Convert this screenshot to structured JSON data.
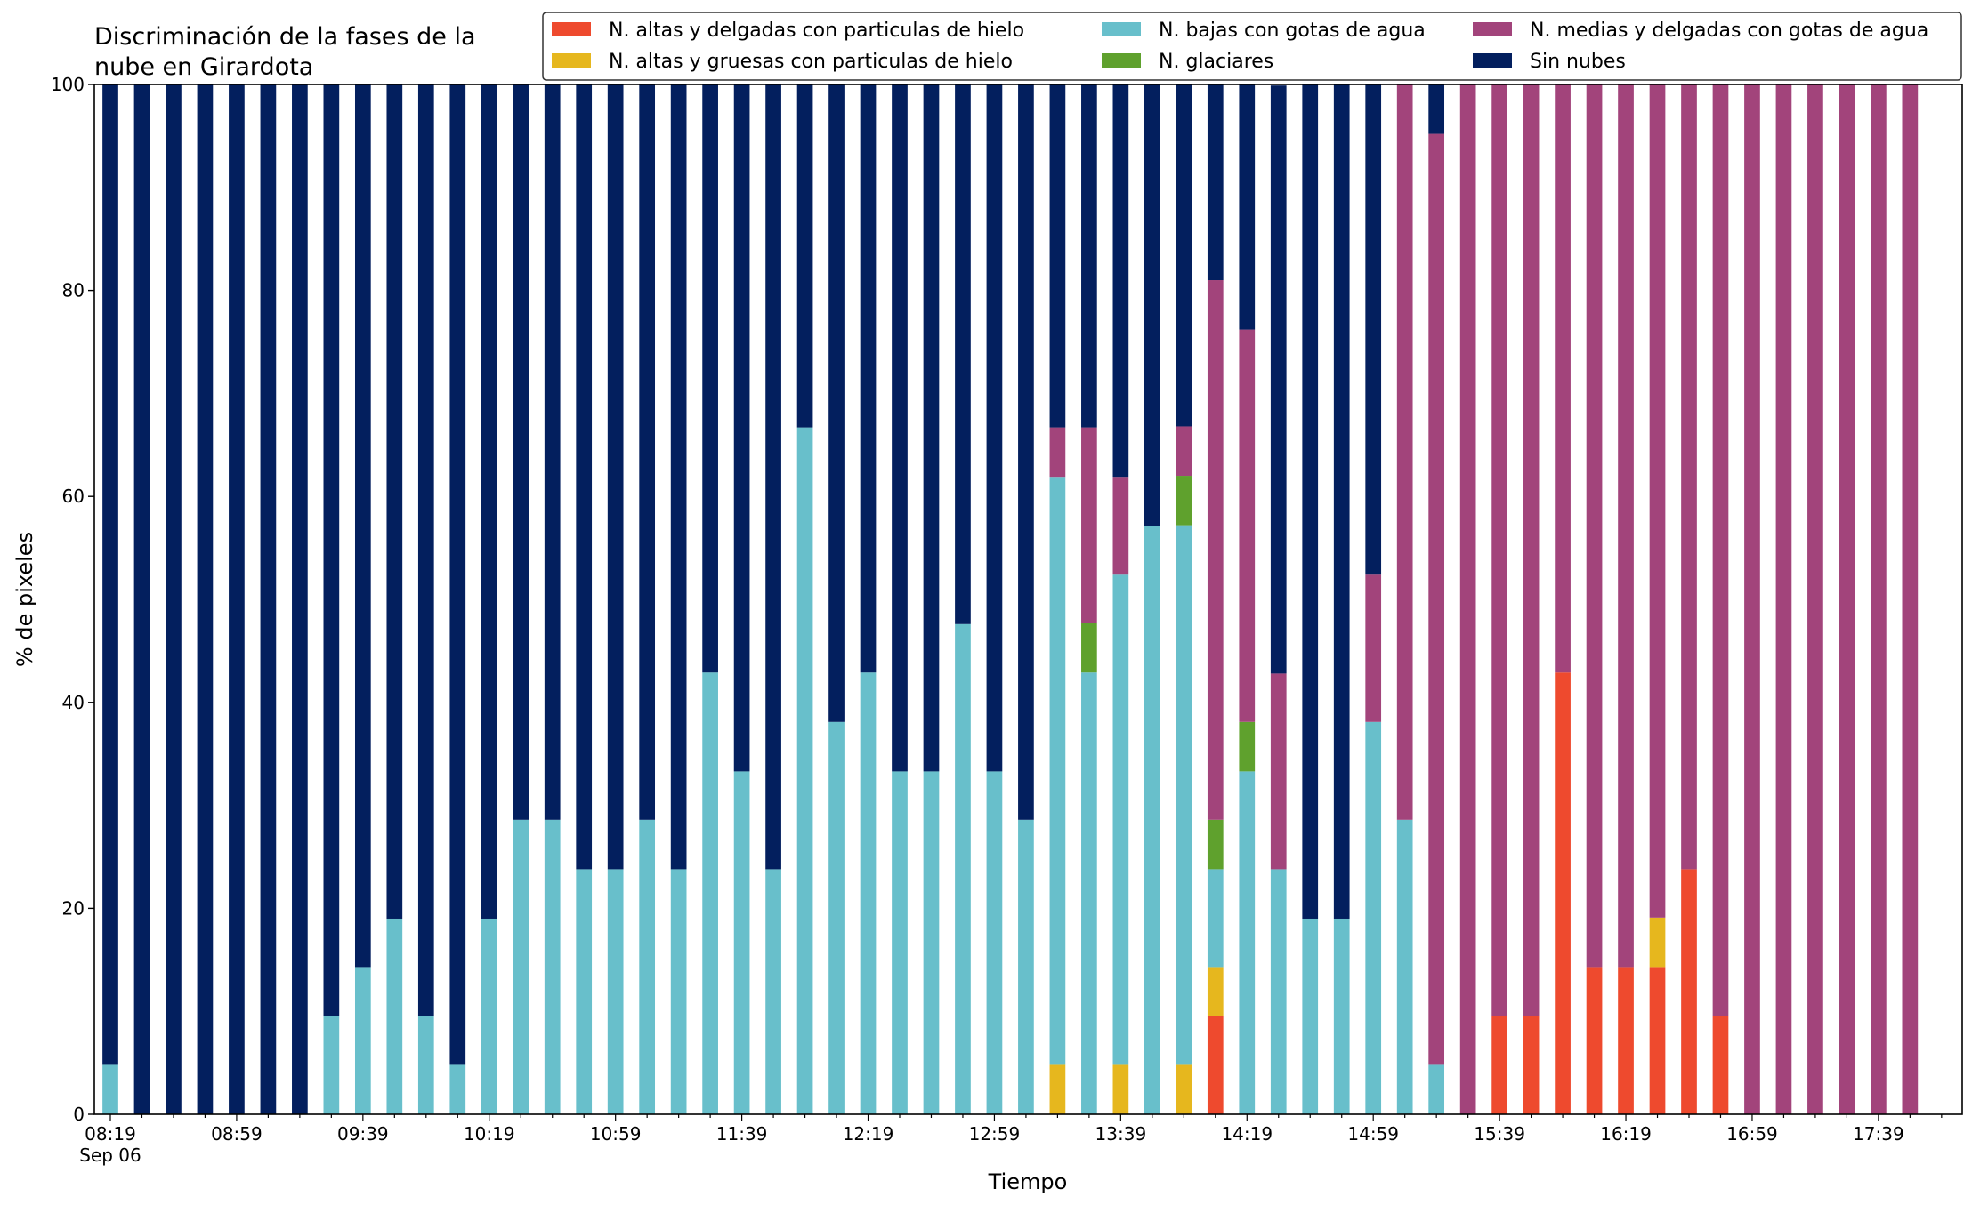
{
  "chart_data": {
    "type": "bar",
    "stacked": true,
    "title_line1": "Discriminación de la fases de la",
    "title_line2": "nube en Girardota",
    "xlabel": "Tiempo",
    "ylabel": "% de pixeles",
    "ylim": [
      0,
      100
    ],
    "yticks": [
      "0",
      "20",
      "40",
      "60",
      "80",
      "100"
    ],
    "xtick_labels": [
      "08:19",
      "08:59",
      "09:39",
      "10:19",
      "10:59",
      "11:39",
      "12:19",
      "12:59",
      "13:39",
      "14:19",
      "14:59",
      "15:39",
      "16:19",
      "16:59",
      "17:39"
    ],
    "xtick_sublabel": "Sep 06",
    "x": [
      "08:19",
      "08:29",
      "08:39",
      "08:49",
      "08:59",
      "09:09",
      "09:19",
      "09:29",
      "09:39",
      "09:49",
      "09:59",
      "10:09",
      "10:19",
      "10:29",
      "10:39",
      "10:49",
      "10:59",
      "11:09",
      "11:19",
      "11:29",
      "11:39",
      "11:49",
      "11:59",
      "12:09",
      "12:19",
      "12:29",
      "12:39",
      "12:49",
      "12:59",
      "13:09",
      "13:19",
      "13:29",
      "13:39",
      "13:49",
      "13:59",
      "14:09",
      "14:19",
      "14:29",
      "14:39",
      "14:49",
      "14:59",
      "15:09",
      "15:19",
      "15:29",
      "15:39",
      "15:49",
      "15:59",
      "16:09",
      "16:19",
      "16:29",
      "16:39",
      "16:49",
      "16:59",
      "17:09",
      "17:19",
      "17:29",
      "17:39",
      "17:49"
    ],
    "legend_position": "top-right",
    "grid": false,
    "series": [
      {
        "name": "N. altas y delgadas con particulas de hielo",
        "color": "#ee4a2e",
        "values": [
          0,
          0,
          0,
          0,
          0,
          0,
          0,
          0,
          0,
          0,
          0,
          0,
          0,
          0,
          0,
          0,
          0,
          0,
          0,
          0,
          0,
          0,
          0,
          0,
          0,
          0,
          0,
          0,
          0,
          0,
          0,
          0,
          0,
          0,
          0,
          9.5,
          0,
          0,
          0,
          0,
          0,
          0,
          0,
          0,
          9.5,
          9.5,
          42.9,
          14.3,
          14.3,
          14.3,
          23.8,
          9.5,
          0,
          0,
          0,
          0,
          0,
          0
        ]
      },
      {
        "name": "N. altas y gruesas con particulas de hielo",
        "color": "#e6b71e",
        "values": [
          0,
          0,
          0,
          0,
          0,
          0,
          0,
          0,
          0,
          0,
          0,
          0,
          0,
          0,
          0,
          0,
          0,
          0,
          0,
          0,
          0,
          0,
          0,
          0,
          0,
          0,
          0,
          0,
          0,
          0,
          4.8,
          0,
          4.8,
          0,
          4.8,
          4.8,
          0,
          0,
          0,
          0,
          0,
          0,
          0,
          0,
          0,
          0,
          0,
          0,
          0,
          4.8,
          0,
          0,
          0,
          0,
          0,
          0,
          0,
          0
        ]
      },
      {
        "name": "N. bajas con gotas de agua",
        "color": "#68bfcb",
        "values": [
          4.8,
          0,
          0,
          0,
          0,
          0,
          0,
          9.5,
          14.3,
          19.0,
          9.5,
          4.8,
          19.0,
          28.6,
          28.6,
          23.8,
          23.8,
          28.6,
          23.8,
          42.9,
          33.3,
          23.8,
          66.7,
          38.1,
          42.9,
          33.3,
          33.3,
          47.6,
          33.3,
          28.6,
          57.1,
          42.9,
          47.6,
          57.1,
          52.4,
          9.5,
          33.3,
          23.8,
          19.0,
          19.0,
          38.1,
          28.6,
          4.8,
          0,
          0,
          0,
          0,
          0,
          0,
          0,
          0,
          0,
          0,
          0,
          0,
          0,
          0,
          0
        ]
      },
      {
        "name": "N. glaciares",
        "color": "#5fa12d",
        "values": [
          0,
          0,
          0,
          0,
          0,
          0,
          0,
          0,
          0,
          0,
          0,
          0,
          0,
          0,
          0,
          0,
          0,
          0,
          0,
          0,
          0,
          0,
          0,
          0,
          0,
          0,
          0,
          0,
          0,
          0,
          0,
          4.8,
          0,
          0,
          4.8,
          4.8,
          4.8,
          0,
          0,
          0,
          0,
          0,
          0,
          0,
          0,
          0,
          0,
          0,
          0,
          0,
          0,
          0,
          0,
          0,
          0,
          0,
          0,
          0
        ]
      },
      {
        "name": "N. medias y delgadas con gotas de agua",
        "color": "#a2447b",
        "values": [
          0,
          0,
          0,
          0,
          0,
          0,
          0,
          0,
          0,
          0,
          0,
          0,
          0,
          0,
          0,
          0,
          0,
          0,
          0,
          0,
          0,
          0,
          0,
          0,
          0,
          0,
          0,
          0,
          0,
          0,
          4.8,
          19.0,
          9.5,
          0,
          4.8,
          52.4,
          38.1,
          19.0,
          0,
          0,
          14.3,
          71.4,
          90.4,
          100,
          90.5,
          90.5,
          57.1,
          85.7,
          85.7,
          80.9,
          76.2,
          90.5,
          100,
          100,
          100,
          100,
          100,
          100
        ]
      },
      {
        "name": "Sin nubes",
        "color": "#031f5e",
        "values": [
          95.2,
          100,
          100,
          100,
          100,
          100,
          100,
          90.5,
          85.7,
          81.0,
          90.5,
          95.2,
          81.0,
          71.4,
          71.4,
          76.2,
          76.2,
          71.4,
          76.2,
          57.1,
          66.7,
          76.2,
          33.3,
          61.9,
          57.1,
          66.7,
          66.7,
          52.4,
          66.7,
          71.4,
          33.3,
          33.3,
          38.1,
          42.9,
          33.3,
          19.0,
          23.8,
          57.1,
          81.0,
          81.0,
          47.6,
          0,
          4.8,
          0,
          0,
          0,
          0,
          0,
          0,
          0,
          0,
          0,
          0,
          0,
          0,
          0,
          0,
          0
        ]
      }
    ]
  }
}
